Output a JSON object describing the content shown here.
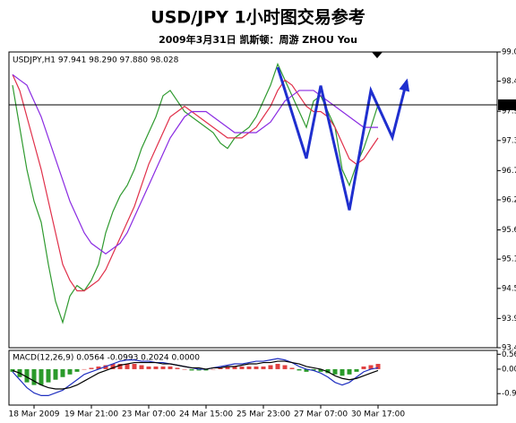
{
  "chart_data": [
    {
      "type": "line",
      "title": "USD/JPY 1小时图交易参考",
      "subtitle": "2009年3月31日 凯斯顿：周游 ZHOU You",
      "label": "USDJPY,H1 97.941 98.290 97.880 98.028",
      "categories": [
        null,
        null,
        null,
        "18 Mar 2009",
        null,
        null,
        null,
        null,
        null,
        null,
        null,
        "19 Mar 21:00",
        null,
        null,
        null,
        null,
        null,
        null,
        null,
        "23 Mar 07:00",
        null,
        null,
        null,
        null,
        null,
        null,
        null,
        "24 Mar 15:00",
        null,
        null,
        null,
        null,
        null,
        null,
        null,
        "25 Mar 23:00",
        null,
        null,
        null,
        null,
        null,
        null,
        null,
        "27 Mar 07:00",
        null,
        null,
        null,
        null,
        null,
        null,
        null,
        "30 Mar 17:00"
      ],
      "ylim": [
        93.42,
        99.03
      ],
      "yticks": [
        {
          "value": 99.03,
          "label": "99.030"
        },
        {
          "value": 98.475,
          "label": "98.475"
        },
        {
          "value": 97.905,
          "label": "97.905"
        },
        {
          "value": 97.35,
          "label": "97.350"
        },
        {
          "value": 96.78,
          "label": "96.780"
        },
        {
          "value": 96.225,
          "label": "96.225"
        },
        {
          "value": 95.655,
          "label": "95.655"
        },
        {
          "value": 95.1,
          "label": "95.100"
        },
        {
          "value": 94.545,
          "label": "94.545"
        },
        {
          "value": 93.975,
          "label": "93.975"
        },
        {
          "value": 93.42,
          "label": "93.420"
        }
      ],
      "current_price": 98.028,
      "grid": false,
      "series": [
        {
          "color": "#2f9a2f",
          "values": [
            98.4,
            97.6,
            96.8,
            96.2,
            95.8,
            95.0,
            94.3,
            93.9,
            94.4,
            94.6,
            94.5,
            94.7,
            95.0,
            95.6,
            96.0,
            96.3,
            96.5,
            96.8,
            97.2,
            97.5,
            97.8,
            98.2,
            98.3,
            98.1,
            97.9,
            97.8,
            97.7,
            97.6,
            97.5,
            97.3,
            97.2,
            97.4,
            97.5,
            97.6,
            97.8,
            98.1,
            98.4,
            98.8,
            98.5,
            98.2,
            97.9,
            97.6,
            98.1,
            98.2,
            97.9,
            97.6,
            96.8,
            96.5,
            96.9,
            97.2,
            97.6,
            98.028
          ]
        },
        {
          "color": "#e0304a",
          "values": [
            98.6,
            98.3,
            97.8,
            97.3,
            96.8,
            96.2,
            95.6,
            95.0,
            94.7,
            94.5,
            94.5,
            94.6,
            94.7,
            94.9,
            95.2,
            95.5,
            95.8,
            96.1,
            96.5,
            96.9,
            97.2,
            97.5,
            97.8,
            97.9,
            98.0,
            97.9,
            97.8,
            97.7,
            97.6,
            97.5,
            97.4,
            97.4,
            97.4,
            97.5,
            97.6,
            97.8,
            98.0,
            98.3,
            98.5,
            98.4,
            98.2,
            98.0,
            97.9,
            97.9,
            97.8,
            97.6,
            97.3,
            97.0,
            96.9,
            97.0,
            97.2,
            97.4
          ]
        },
        {
          "color": "#8a2be2",
          "values": [
            98.6,
            98.5,
            98.4,
            98.1,
            97.8,
            97.4,
            97.0,
            96.6,
            96.2,
            95.9,
            95.6,
            95.4,
            95.3,
            95.2,
            95.3,
            95.4,
            95.6,
            95.9,
            96.2,
            96.5,
            96.8,
            97.1,
            97.4,
            97.6,
            97.8,
            97.9,
            97.9,
            97.9,
            97.8,
            97.7,
            97.6,
            97.5,
            97.5,
            97.5,
            97.5,
            97.6,
            97.7,
            97.9,
            98.1,
            98.2,
            98.3,
            98.3,
            98.3,
            98.2,
            98.1,
            98.0,
            97.9,
            97.8,
            97.7,
            97.6,
            97.6,
            97.6
          ]
        },
        {
          "color": "#1f2fcf",
          "x": [
            37,
            41,
            43,
            47,
            50,
            53,
            55
          ],
          "values": [
            98.74,
            97.01,
            98.39,
            96.03,
            98.3,
            97.41,
            98.48
          ]
        }
      ]
    },
    {
      "type": "bar",
      "label": "MACD(12,26,9) 0.0564 -0.0993 0.2024 0.0000",
      "ylim": [
        -1.36,
        0.71
      ],
      "yticks": [
        0.5645,
        {
          "value": 0,
          "label": "0.00"
        },
        -0.9265
      ],
      "color": "#e04040",
      "negative_color": "#2a9a2a",
      "values": [
        -0.1,
        -0.3,
        -0.5,
        -0.6,
        -0.6,
        -0.5,
        -0.4,
        -0.3,
        -0.2,
        -0.1,
        0.0,
        0.05,
        0.1,
        0.15,
        0.2,
        0.2,
        0.2,
        0.2,
        0.15,
        0.1,
        0.1,
        0.1,
        0.1,
        0.05,
        0.0,
        -0.05,
        -0.05,
        -0.05,
        0.0,
        0.05,
        0.1,
        0.1,
        0.1,
        0.1,
        0.1,
        0.1,
        0.15,
        0.2,
        0.15,
        0.05,
        -0.05,
        -0.1,
        -0.05,
        -0.1,
        -0.15,
        -0.2,
        -0.25,
        -0.2,
        -0.1,
        0.1,
        0.15,
        0.2
      ],
      "series": [
        {
          "color": "#2030c0",
          "values": [
            -0.1,
            -0.4,
            -0.7,
            -0.9,
            -1.0,
            -1.0,
            -0.9,
            -0.8,
            -0.6,
            -0.4,
            -0.2,
            -0.1,
            0.0,
            0.1,
            0.2,
            0.3,
            0.35,
            0.35,
            0.3,
            0.3,
            0.25,
            0.25,
            0.2,
            0.15,
            0.1,
            0.05,
            0.0,
            0.0,
            0.05,
            0.1,
            0.15,
            0.2,
            0.2,
            0.25,
            0.3,
            0.3,
            0.35,
            0.4,
            0.35,
            0.25,
            0.1,
            0.0,
            -0.05,
            -0.15,
            -0.3,
            -0.5,
            -0.6,
            -0.5,
            -0.3,
            -0.1,
            0.0,
            0.05
          ]
        },
        {
          "color": "#000000",
          "values": [
            -0.05,
            -0.15,
            -0.3,
            -0.45,
            -0.6,
            -0.7,
            -0.75,
            -0.75,
            -0.7,
            -0.6,
            -0.45,
            -0.3,
            -0.15,
            -0.05,
            0.05,
            0.15,
            0.2,
            0.25,
            0.25,
            0.25,
            0.25,
            0.2,
            0.2,
            0.15,
            0.1,
            0.05,
            0.05,
            0.0,
            0.05,
            0.05,
            0.1,
            0.1,
            0.15,
            0.2,
            0.2,
            0.25,
            0.25,
            0.3,
            0.3,
            0.25,
            0.2,
            0.1,
            0.05,
            0.0,
            -0.1,
            -0.25,
            -0.35,
            -0.4,
            -0.35,
            -0.25,
            -0.15,
            -0.05
          ]
        }
      ]
    }
  ]
}
